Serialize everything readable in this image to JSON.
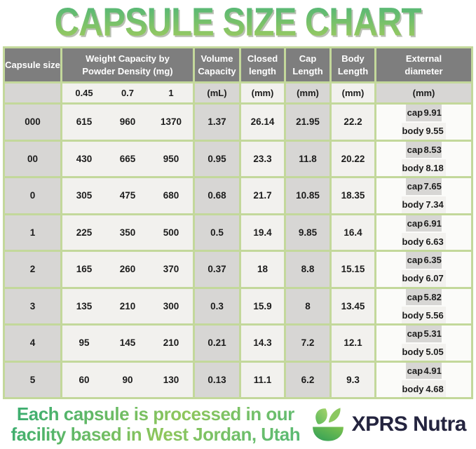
{
  "title": "CAPSULE SIZE CHART",
  "chart_data": {
    "type": "table",
    "title": "CAPSULE SIZE CHART",
    "headers": {
      "capsule_size": "Capsule size",
      "weight_capacity": "Weight Capacity by\nPowder Density (mg)",
      "volume_capacity": "Volume\nCapacity",
      "closed_length": "Closed\nlength",
      "cap_length": "Cap\nLength",
      "body_length": "Body\nLength",
      "external_diameter": "External\ndiameter"
    },
    "subheaders": {
      "capsule_size": "",
      "densities": [
        "0.45",
        "0.7",
        "1"
      ],
      "volume_unit": "(mL)",
      "closed_unit": "(mm)",
      "cap_unit": "(mm)",
      "body_unit": "(mm)",
      "external_unit": "(mm)"
    },
    "labels": {
      "cap": "cap",
      "body": "body"
    },
    "rows": [
      {
        "size": "000",
        "weights": [
          "615",
          "960",
          "1370"
        ],
        "volume": "1.37",
        "closed_length": "26.14",
        "cap_length": "21.95",
        "body_length": "22.2",
        "diameter_cap": "9.91",
        "diameter_body": "9.55"
      },
      {
        "size": "00",
        "weights": [
          "430",
          "665",
          "950"
        ],
        "volume": "0.95",
        "closed_length": "23.3",
        "cap_length": "11.8",
        "body_length": "20.22",
        "diameter_cap": "8.53",
        "diameter_body": "8.18"
      },
      {
        "size": "0",
        "weights": [
          "305",
          "475",
          "680"
        ],
        "volume": "0.68",
        "closed_length": "21.7",
        "cap_length": "10.85",
        "body_length": "18.35",
        "diameter_cap": "7.65",
        "diameter_body": "7.34"
      },
      {
        "size": "1",
        "weights": [
          "225",
          "350",
          "500"
        ],
        "volume": "0.5",
        "closed_length": "19.4",
        "cap_length": "9.85",
        "body_length": "16.4",
        "diameter_cap": "6.91",
        "diameter_body": "6.63"
      },
      {
        "size": "2",
        "weights": [
          "165",
          "260",
          "370"
        ],
        "volume": "0.37",
        "closed_length": "18",
        "cap_length": "8.8",
        "body_length": "15.15",
        "diameter_cap": "6.35",
        "diameter_body": "6.07"
      },
      {
        "size": "3",
        "weights": [
          "135",
          "210",
          "300"
        ],
        "volume": "0.3",
        "closed_length": "15.9",
        "cap_length": "8",
        "body_length": "13.45",
        "diameter_cap": "5.82",
        "diameter_body": "5.56"
      },
      {
        "size": "4",
        "weights": [
          "95",
          "145",
          "210"
        ],
        "volume": "0.21",
        "closed_length": "14.3",
        "cap_length": "7.2",
        "body_length": "12.1",
        "diameter_cap": "5.31",
        "diameter_body": "5.05"
      },
      {
        "size": "5",
        "weights": [
          "60",
          "90",
          "130"
        ],
        "volume": "0.13",
        "closed_length": "11.1",
        "cap_length": "6.2",
        "body_length": "9.3",
        "diameter_cap": "4.91",
        "diameter_body": "4.68"
      }
    ]
  },
  "footer": {
    "tagline_line1": "Each capsule is processed in our",
    "tagline_line2": "facility based in West Jordan, Utah",
    "brand": "XPRS Nutra"
  },
  "colors": {
    "title_gradient_top": "#4db578",
    "title_gradient_bottom": "#a3cd5d",
    "table_border_green": "#c3d89b",
    "header_gray": "#7e7e7e",
    "cell_gray": "#d7d6d4",
    "cell_light": "#f2f1ee",
    "brand_navy": "#24243f",
    "logo_green_dark": "#2f9e58",
    "logo_green_light": "#8cc860"
  }
}
